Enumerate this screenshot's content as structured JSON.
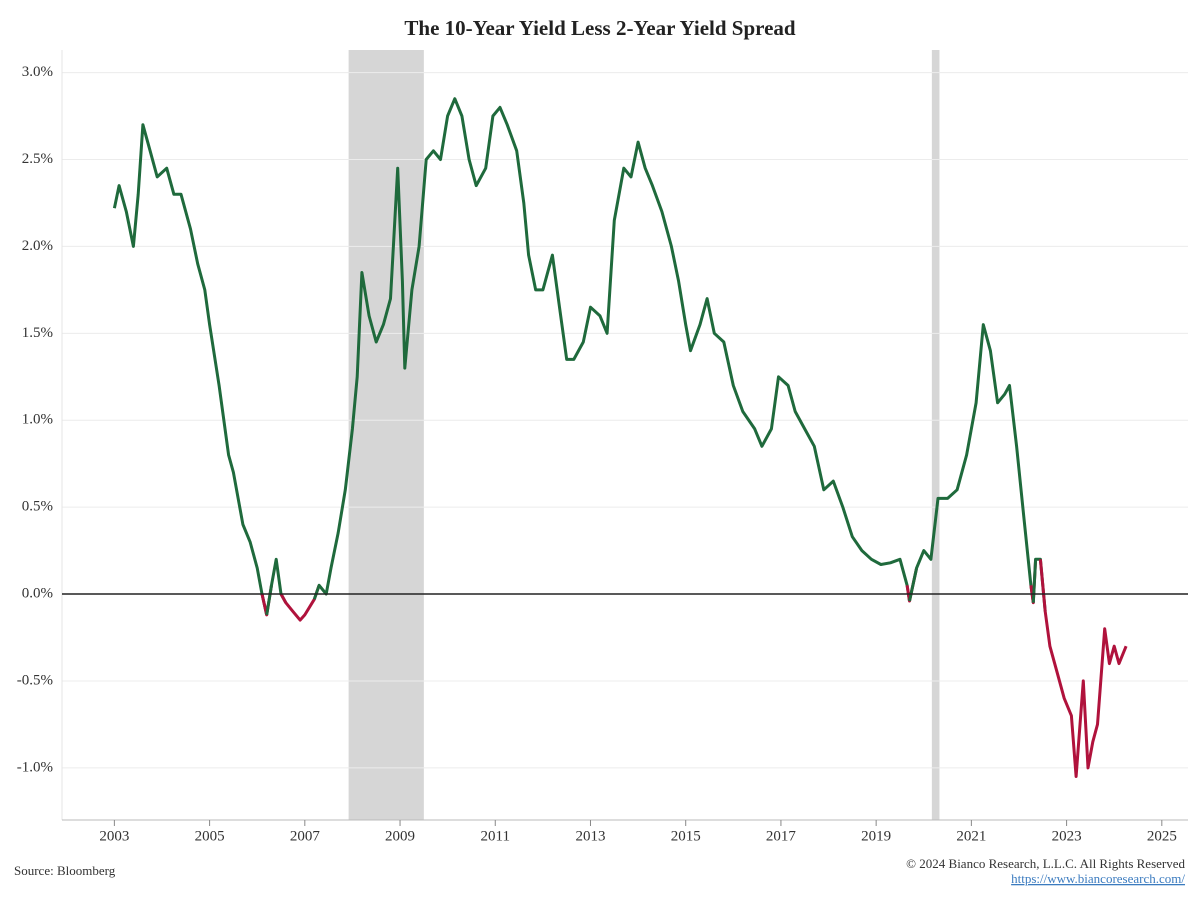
{
  "chart_data": {
    "type": "line",
    "title": "The 10-Year Yield Less 2-Year Yield Spread",
    "source": "Source: Bloomberg",
    "copyright": "© 2024 Bianco Research, L.L.C. All Rights Reserved",
    "url": "https://www.biancoresearch.com/",
    "xlim": [
      2001.9,
      2025.55
    ],
    "xticks": [
      2003,
      2005,
      2007,
      2009,
      2011,
      2013,
      2015,
      2017,
      2019,
      2021,
      2023,
      2025
    ],
    "ylim": [
      -1.3,
      3.13
    ],
    "yticks": [
      {
        "value": -1,
        "label": "-1.0%"
      },
      {
        "value": -0.5,
        "label": "-0.5%"
      },
      {
        "value": 0,
        "label": "0.0%"
      },
      {
        "value": 0.5,
        "label": "0.5%"
      },
      {
        "value": 1,
        "label": "1.0%"
      },
      {
        "value": 1.5,
        "label": "1.5%"
      },
      {
        "value": 2,
        "label": "2.0%"
      },
      {
        "value": 2.5,
        "label": "2.5%"
      },
      {
        "value": 3,
        "label": "3.0%"
      }
    ],
    "grid": true,
    "reference_line": 0,
    "shaded_regions": [
      [
        2007.92,
        2009.5
      ],
      [
        2020.17,
        2020.33
      ]
    ],
    "shade_color": "#d6d6d6",
    "series": [
      {
        "color": "#1f6a3c",
        "negative_color": "#b0123c",
        "x": [
          2003.0,
          2003.1,
          2003.25,
          2003.4,
          2003.5,
          2003.6,
          2003.75,
          2003.9,
          2004.1,
          2004.25,
          2004.4,
          2004.6,
          2004.75,
          2004.9,
          2005.0,
          2005.2,
          2005.4,
          2005.5,
          2005.7,
          2005.85,
          2006.0,
          2006.1,
          2006.2,
          2006.3,
          2006.4,
          2006.5,
          2006.6,
          2006.75,
          2006.9,
          2007.0,
          2007.2,
          2007.3,
          2007.45,
          2007.55,
          2007.7,
          2007.85,
          2008.0,
          2008.1,
          2008.2,
          2008.35,
          2008.5,
          2008.65,
          2008.8,
          2008.95,
          2009.05,
          2009.1,
          2009.25,
          2009.4,
          2009.55,
          2009.7,
          2009.85,
          2010.0,
          2010.15,
          2010.3,
          2010.45,
          2010.6,
          2010.8,
          2010.95,
          2011.1,
          2011.25,
          2011.45,
          2011.6,
          2011.7,
          2011.85,
          2012.0,
          2012.2,
          2012.35,
          2012.5,
          2012.65,
          2012.85,
          2013.0,
          2013.2,
          2013.35,
          2013.5,
          2013.7,
          2013.85,
          2014.0,
          2014.15,
          2014.3,
          2014.5,
          2014.7,
          2014.85,
          2015.0,
          2015.1,
          2015.3,
          2015.45,
          2015.6,
          2015.8,
          2016.0,
          2016.2,
          2016.45,
          2016.6,
          2016.8,
          2016.95,
          2017.15,
          2017.3,
          2017.5,
          2017.7,
          2017.9,
          2018.1,
          2018.3,
          2018.5,
          2018.7,
          2018.9,
          2019.1,
          2019.3,
          2019.5,
          2019.65,
          2019.7,
          2019.85,
          2020.0,
          2020.15,
          2020.3,
          2020.5,
          2020.7,
          2020.9,
          2021.1,
          2021.25,
          2021.4,
          2021.55,
          2021.7,
          2021.8,
          2021.95,
          2022.1,
          2022.25,
          2022.3,
          2022.35,
          2022.45,
          2022.55,
          2022.65,
          2022.8,
          2022.95,
          2023.1,
          2023.2,
          2023.35,
          2023.45,
          2023.55,
          2023.65,
          2023.8,
          2023.9,
          2024.0,
          2024.1,
          2024.25
        ],
        "values": [
          2.22,
          2.35,
          2.2,
          2.0,
          2.3,
          2.7,
          2.55,
          2.4,
          2.45,
          2.3,
          2.3,
          2.1,
          1.9,
          1.75,
          1.55,
          1.2,
          0.8,
          0.7,
          0.4,
          0.3,
          0.15,
          0.0,
          -0.12,
          0.05,
          0.2,
          0.0,
          -0.05,
          -0.1,
          -0.15,
          -0.12,
          -0.03,
          0.05,
          0.0,
          0.15,
          0.35,
          0.6,
          0.95,
          1.25,
          1.85,
          1.6,
          1.45,
          1.55,
          1.7,
          2.45,
          1.8,
          1.3,
          1.75,
          2.0,
          2.5,
          2.55,
          2.5,
          2.75,
          2.85,
          2.75,
          2.5,
          2.35,
          2.45,
          2.75,
          2.8,
          2.7,
          2.55,
          2.25,
          1.95,
          1.75,
          1.75,
          1.95,
          1.65,
          1.35,
          1.35,
          1.45,
          1.65,
          1.6,
          1.5,
          2.15,
          2.45,
          2.4,
          2.6,
          2.45,
          2.35,
          2.2,
          2.0,
          1.8,
          1.55,
          1.4,
          1.55,
          1.7,
          1.5,
          1.45,
          1.2,
          1.05,
          0.95,
          0.85,
          0.95,
          1.25,
          1.2,
          1.05,
          0.95,
          0.85,
          0.6,
          0.65,
          0.5,
          0.33,
          0.25,
          0.2,
          0.17,
          0.18,
          0.2,
          0.05,
          -0.04,
          0.15,
          0.25,
          0.2,
          0.55,
          0.55,
          0.6,
          0.8,
          1.1,
          1.55,
          1.4,
          1.1,
          1.15,
          1.2,
          0.85,
          0.45,
          0.05,
          -0.05,
          0.2,
          0.2,
          -0.1,
          -0.3,
          -0.45,
          -0.6,
          -0.7,
          -1.05,
          -0.5,
          -1.0,
          -0.85,
          -0.75,
          -0.2,
          -0.4,
          -0.3,
          -0.4,
          -0.3
        ]
      }
    ]
  }
}
